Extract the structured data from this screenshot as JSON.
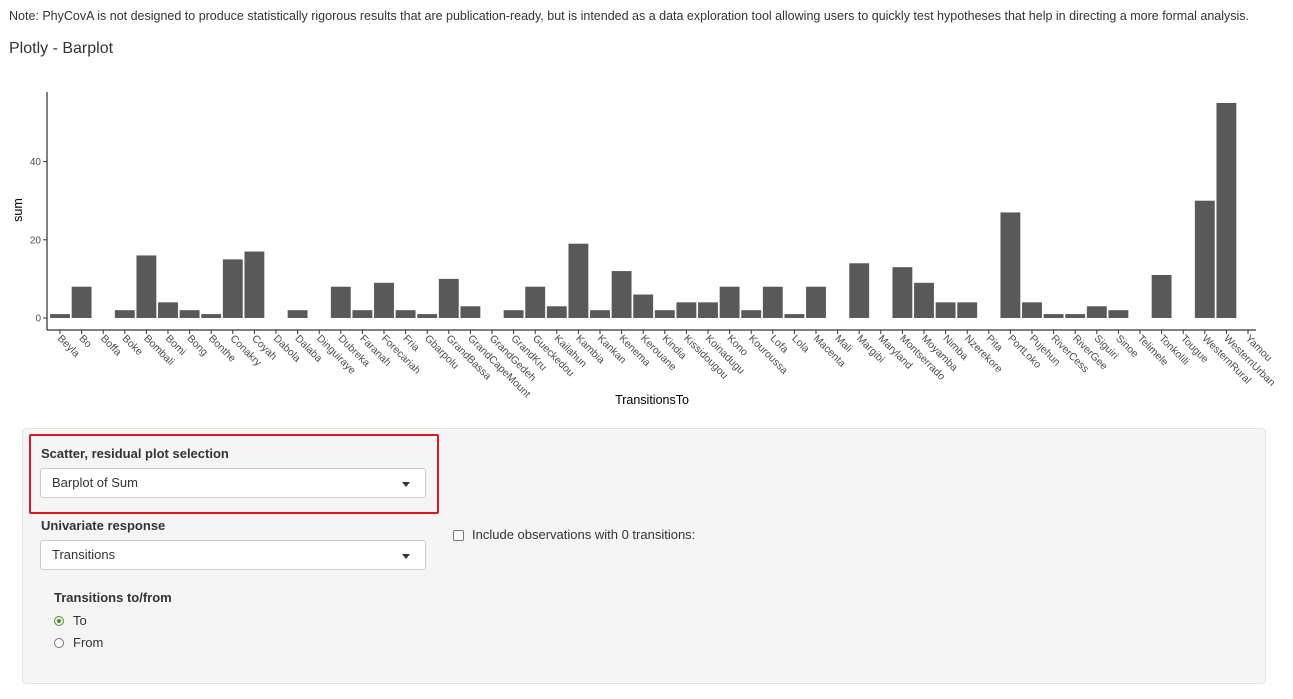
{
  "note": "Note: PhyCovA is not designed to produce statistically rigorous results that are publication-ready, but is intended as a data exploration tool allowing users to quickly test hypotheses that help in directing a more formal analysis.",
  "plot_title": "Plotly - Barplot",
  "chart_data": {
    "type": "bar",
    "xlabel": "TransitionsTo",
    "ylabel": "sum",
    "ylim": [
      0,
      57
    ],
    "yticks": [
      0,
      20,
      40
    ],
    "bar_color": "#595959",
    "categories": [
      "Beyla",
      "Bo",
      "Boffa",
      "Boke",
      "Bombali",
      "Bomi",
      "Bong",
      "Bonthe",
      "Conakry",
      "Coyah",
      "Dabola",
      "Dalaba",
      "Dinguiraye",
      "Dubreka",
      "Faranah",
      "Forecariah",
      "Fria",
      "Gbarpolu",
      "GrandBassa",
      "GrandCapeMount",
      "GrandGedeh",
      "GrandKru",
      "Gueckedou",
      "Kailahun",
      "Kambia",
      "Kankan",
      "Kenema",
      "Kerouane",
      "Kindia",
      "Kissidougou",
      "Koinadugu",
      "Kono",
      "Kouroussa",
      "Lofa",
      "Lola",
      "Macenta",
      "Mali",
      "Margibi",
      "Maryland",
      "Montserrado",
      "Moyamba",
      "Nimba",
      "Nzerekore",
      "Pita",
      "PortLoko",
      "Pujehun",
      "RiverCess",
      "RiverGee",
      "Siguiri",
      "Sinoe",
      "Telimele",
      "Tonkolili",
      "Tougue",
      "WesternRural",
      "WesternUrban",
      "Yamou"
    ],
    "values": [
      1,
      8,
      0,
      2,
      16,
      4,
      2,
      1,
      15,
      17,
      0,
      2,
      0,
      8,
      2,
      9,
      2,
      1,
      10,
      3,
      0,
      2,
      8,
      3,
      19,
      2,
      12,
      6,
      2,
      4,
      4,
      8,
      2,
      8,
      1,
      8,
      0,
      14,
      0,
      13,
      9,
      4,
      4,
      0,
      27,
      4,
      1,
      1,
      3,
      2,
      0,
      11,
      0,
      30,
      55,
      0
    ]
  },
  "form": {
    "plot_selection_label": "Scatter, residual plot selection",
    "plot_selection_value": "Barplot of Sum",
    "univariate_label": "Univariate response",
    "univariate_value": "Transitions",
    "include_zero_label": "Include observations with 0 transitions:",
    "direction_label": "Transitions to/from",
    "direction_to": "To",
    "direction_from": "From"
  }
}
